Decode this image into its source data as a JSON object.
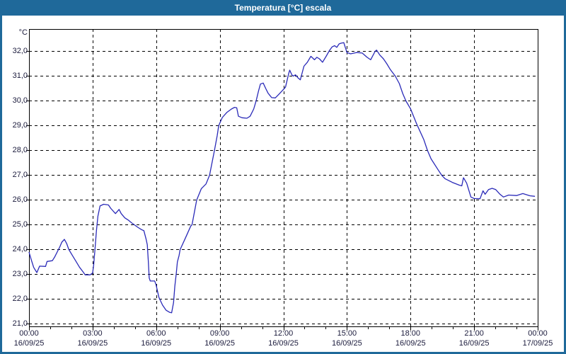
{
  "window": {
    "title": "Temperatura [°C] escala"
  },
  "colors": {
    "titlebar_bg": "#1f699a",
    "window_border": "#1f699a",
    "content_bg": "#ffffff",
    "title_text": "#ffffff",
    "axis_text": "#1b1b3c",
    "grid_line": "#000000",
    "series_line": "#2a2ab8"
  },
  "chart_data": {
    "type": "line",
    "title": "Temperatura [°C] escala",
    "grid": "dashed",
    "legend": "none",
    "y_axis": {
      "unit_label": "°C",
      "range": [
        20.9,
        32.9
      ],
      "ticks": [
        {
          "value": 32.0,
          "label": "32,0"
        },
        {
          "value": 31.0,
          "label": "31,0"
        },
        {
          "value": 30.0,
          "label": "30,0"
        },
        {
          "value": 29.0,
          "label": "29,0"
        },
        {
          "value": 28.0,
          "label": "28,0"
        },
        {
          "value": 27.0,
          "label": "27,0"
        },
        {
          "value": 26.0,
          "label": "26,0"
        },
        {
          "value": 25.0,
          "label": "25,0"
        },
        {
          "value": 24.0,
          "label": "24,0"
        },
        {
          "value": 23.0,
          "label": "23,0"
        },
        {
          "value": 22.0,
          "label": "22,0"
        },
        {
          "value": 21.0,
          "label": "21,0"
        }
      ]
    },
    "x_axis": {
      "range_hours": [
        0,
        24
      ],
      "minor_tick_every_hours": 1,
      "major_ticks": [
        {
          "hour": 0,
          "time": "00:00",
          "date": "16/09/25"
        },
        {
          "hour": 3,
          "time": "03:00",
          "date": "16/09/25"
        },
        {
          "hour": 6,
          "time": "06:00",
          "date": "16/09/25"
        },
        {
          "hour": 9,
          "time": "09:00",
          "date": "16/09/25"
        },
        {
          "hour": 12,
          "time": "12:00",
          "date": "16/09/25"
        },
        {
          "hour": 15,
          "time": "15:00",
          "date": "16/09/25"
        },
        {
          "hour": 18,
          "time": "18:00",
          "date": "16/09/25"
        },
        {
          "hour": 21,
          "time": "21:00",
          "date": "16/09/25"
        },
        {
          "hour": 24,
          "time": "00:00",
          "date": "17/09/25"
        }
      ]
    },
    "series": [
      {
        "name": "Temperatura",
        "color": "#2a2ab8",
        "points_time_hours_temp_c": [
          [
            0.0,
            23.9
          ],
          [
            0.12,
            23.55
          ],
          [
            0.22,
            23.28
          ],
          [
            0.37,
            23.07
          ],
          [
            0.5,
            23.33
          ],
          [
            0.78,
            23.32
          ],
          [
            0.85,
            23.52
          ],
          [
            1.1,
            23.55
          ],
          [
            1.22,
            23.71
          ],
          [
            1.33,
            23.9
          ],
          [
            1.45,
            24.1
          ],
          [
            1.55,
            24.3
          ],
          [
            1.67,
            24.41
          ],
          [
            1.78,
            24.24
          ],
          [
            1.88,
            24.0
          ],
          [
            2.05,
            23.76
          ],
          [
            2.22,
            23.52
          ],
          [
            2.38,
            23.29
          ],
          [
            2.55,
            23.1
          ],
          [
            2.65,
            22.98
          ],
          [
            2.88,
            22.98
          ],
          [
            3.0,
            23.05
          ],
          [
            3.05,
            23.38
          ],
          [
            3.12,
            24.1
          ],
          [
            3.18,
            24.76
          ],
          [
            3.25,
            25.35
          ],
          [
            3.35,
            25.76
          ],
          [
            3.52,
            25.83
          ],
          [
            3.75,
            25.8
          ],
          [
            3.85,
            25.67
          ],
          [
            4.08,
            25.45
          ],
          [
            4.25,
            25.62
          ],
          [
            4.35,
            25.45
          ],
          [
            4.52,
            25.28
          ],
          [
            4.68,
            25.19
          ],
          [
            4.85,
            25.07
          ],
          [
            4.97,
            25.0
          ],
          [
            5.13,
            24.9
          ],
          [
            5.3,
            24.81
          ],
          [
            5.42,
            24.76
          ],
          [
            5.52,
            24.43
          ],
          [
            5.58,
            24.19
          ],
          [
            5.63,
            23.5
          ],
          [
            5.67,
            22.85
          ],
          [
            5.72,
            22.73
          ],
          [
            5.93,
            22.73
          ],
          [
            6.0,
            22.55
          ],
          [
            6.13,
            22.07
          ],
          [
            6.3,
            21.76
          ],
          [
            6.47,
            21.55
          ],
          [
            6.63,
            21.47
          ],
          [
            6.73,
            21.45
          ],
          [
            6.82,
            21.86
          ],
          [
            6.88,
            22.52
          ],
          [
            6.95,
            23.05
          ],
          [
            7.0,
            23.5
          ],
          [
            7.08,
            23.76
          ],
          [
            7.13,
            24.0
          ],
          [
            7.37,
            24.45
          ],
          [
            7.63,
            24.95
          ],
          [
            7.69,
            25.0
          ],
          [
            7.91,
            26.0
          ],
          [
            8.13,
            26.46
          ],
          [
            8.35,
            26.65
          ],
          [
            8.52,
            27.0
          ],
          [
            8.75,
            28.0
          ],
          [
            8.88,
            28.6
          ],
          [
            8.95,
            29.0
          ],
          [
            9.12,
            29.33
          ],
          [
            9.33,
            29.53
          ],
          [
            9.55,
            29.67
          ],
          [
            9.7,
            29.74
          ],
          [
            9.8,
            29.72
          ],
          [
            9.88,
            29.38
          ],
          [
            10.05,
            29.32
          ],
          [
            10.28,
            29.3
          ],
          [
            10.43,
            29.38
          ],
          [
            10.6,
            29.67
          ],
          [
            10.72,
            30.02
          ],
          [
            10.83,
            30.4
          ],
          [
            10.92,
            30.68
          ],
          [
            11.05,
            30.72
          ],
          [
            11.17,
            30.5
          ],
          [
            11.28,
            30.31
          ],
          [
            11.45,
            30.13
          ],
          [
            11.62,
            30.12
          ],
          [
            11.78,
            30.26
          ],
          [
            11.95,
            30.41
          ],
          [
            12.1,
            30.55
          ],
          [
            12.25,
            31.1
          ],
          [
            12.3,
            31.24
          ],
          [
            12.4,
            31.05
          ],
          [
            12.47,
            31.0
          ],
          [
            12.57,
            31.05
          ],
          [
            12.7,
            30.92
          ],
          [
            12.8,
            30.85
          ],
          [
            12.97,
            31.4
          ],
          [
            13.13,
            31.56
          ],
          [
            13.3,
            31.8
          ],
          [
            13.47,
            31.66
          ],
          [
            13.58,
            31.76
          ],
          [
            13.7,
            31.7
          ],
          [
            13.85,
            31.56
          ],
          [
            14.02,
            31.8
          ],
          [
            14.18,
            32.04
          ],
          [
            14.3,
            32.18
          ],
          [
            14.42,
            32.23
          ],
          [
            14.52,
            32.16
          ],
          [
            14.63,
            32.3
          ],
          [
            14.72,
            32.33
          ],
          [
            14.85,
            32.35
          ],
          [
            15.0,
            31.95
          ],
          [
            15.17,
            31.9
          ],
          [
            15.45,
            31.95
          ],
          [
            15.72,
            31.93
          ],
          [
            15.95,
            31.76
          ],
          [
            16.12,
            31.66
          ],
          [
            16.33,
            32.0
          ],
          [
            16.4,
            32.05
          ],
          [
            16.55,
            31.85
          ],
          [
            16.72,
            31.7
          ],
          [
            16.88,
            31.5
          ],
          [
            17.05,
            31.26
          ],
          [
            17.28,
            31.0
          ],
          [
            17.47,
            30.7
          ],
          [
            17.63,
            30.3
          ],
          [
            17.78,
            30.0
          ],
          [
            18.0,
            29.68
          ],
          [
            18.3,
            29.05
          ],
          [
            18.63,
            28.43
          ],
          [
            18.8,
            28.0
          ],
          [
            18.97,
            27.66
          ],
          [
            19.3,
            27.22
          ],
          [
            19.47,
            27.0
          ],
          [
            19.63,
            26.86
          ],
          [
            19.97,
            26.71
          ],
          [
            20.3,
            26.6
          ],
          [
            20.42,
            26.57
          ],
          [
            20.5,
            26.9
          ],
          [
            20.65,
            26.68
          ],
          [
            20.85,
            26.12
          ],
          [
            21.0,
            26.06
          ],
          [
            21.28,
            26.05
          ],
          [
            21.42,
            26.37
          ],
          [
            21.52,
            26.23
          ],
          [
            21.68,
            26.42
          ],
          [
            21.85,
            26.47
          ],
          [
            22.02,
            26.42
          ],
          [
            22.22,
            26.23
          ],
          [
            22.38,
            26.12
          ],
          [
            22.63,
            26.2
          ],
          [
            23.0,
            26.18
          ],
          [
            23.3,
            26.26
          ],
          [
            23.63,
            26.17
          ],
          [
            23.87,
            26.15
          ]
        ]
      }
    ]
  }
}
